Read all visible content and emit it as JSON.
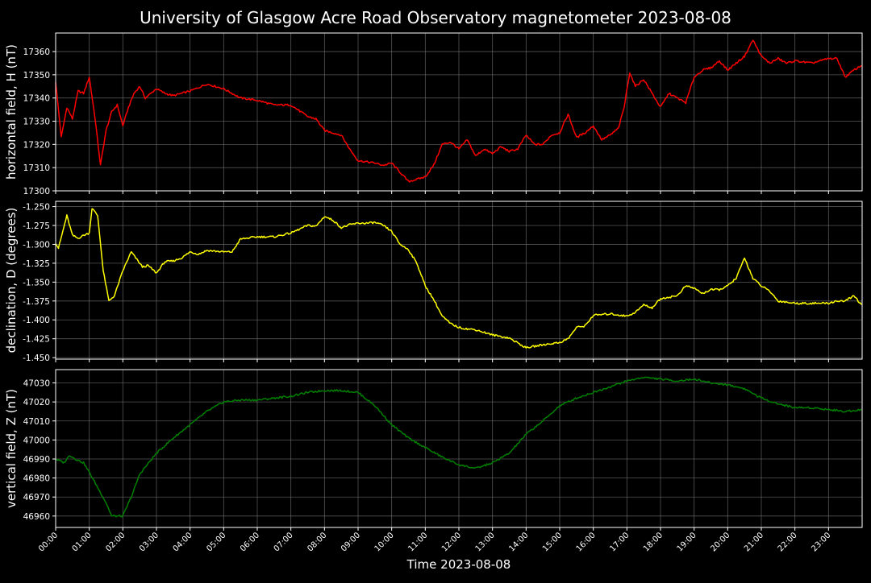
{
  "title": "University of Glasgow Acre Road Observatory magnetometer 2023-08-08",
  "colors": {
    "background": "#000000",
    "grid": "#777777",
    "frame": "#ffffff",
    "text": "#ffffff"
  },
  "chart_data": {
    "type": "line",
    "title": "University of Glasgow Acre Road Observatory magnetometer 2023-08-08",
    "xlabel": "Time 2023-08-08",
    "x_ticks": [
      "00:00",
      "01:00",
      "02:00",
      "03:00",
      "04:00",
      "05:00",
      "06:00",
      "07:00",
      "08:00",
      "09:00",
      "10:00",
      "11:00",
      "12:00",
      "13:00",
      "14:00",
      "15:00",
      "16:00",
      "17:00",
      "18:00",
      "19:00",
      "20:00",
      "21:00",
      "22:00",
      "23:00"
    ],
    "xlim": [
      "00:00",
      "24:00"
    ],
    "grid": true,
    "panels": [
      {
        "ylabel": "horizontal field, H (nT)",
        "color": "#ff0000",
        "ylim": [
          17300,
          17368
        ],
        "y_ticks": [
          "17300",
          "17310",
          "17320",
          "17330",
          "17340",
          "17350",
          "17360"
        ],
        "series": {
          "x": [
            "00:00",
            "00:10",
            "00:20",
            "00:30",
            "00:40",
            "00:50",
            "01:00",
            "01:10",
            "01:20",
            "01:30",
            "01:40",
            "01:50",
            "02:00",
            "02:10",
            "02:20",
            "02:30",
            "02:40",
            "02:50",
            "03:00",
            "03:15",
            "03:30",
            "04:00",
            "04:30",
            "05:00",
            "05:30",
            "06:00",
            "06:30",
            "07:00",
            "07:30",
            "07:45",
            "08:00",
            "08:30",
            "08:45",
            "09:00",
            "09:30",
            "09:45",
            "10:00",
            "10:30",
            "10:45",
            "11:00",
            "11:15",
            "11:30",
            "11:45",
            "12:00",
            "12:15",
            "12:30",
            "12:45",
            "13:00",
            "13:15",
            "13:30",
            "13:45",
            "14:00",
            "14:15",
            "14:30",
            "14:45",
            "15:00",
            "15:15",
            "15:30",
            "15:45",
            "16:00",
            "16:15",
            "16:30",
            "16:45",
            "16:55",
            "17:05",
            "17:15",
            "17:30",
            "17:45",
            "18:00",
            "18:15",
            "18:30",
            "18:45",
            "19:00",
            "19:15",
            "19:30",
            "19:45",
            "20:00",
            "20:15",
            "20:30",
            "20:45",
            "21:00",
            "21:15",
            "21:30",
            "21:45",
            "22:00",
            "22:30",
            "23:00",
            "23:15",
            "23:30",
            "23:45",
            "23:59"
          ],
          "y": [
            17347,
            17323,
            17336,
            17331,
            17343,
            17342,
            17349,
            17332,
            17311,
            17326,
            17334,
            17337,
            17328,
            17336,
            17342,
            17345,
            17340,
            17342,
            17344,
            17342,
            17341,
            17343,
            17346,
            17344,
            17340,
            17339,
            17337,
            17337,
            17332,
            17331,
            17326,
            17324,
            17318,
            17313,
            17312,
            17311,
            17312,
            17304,
            17305,
            17306,
            17311,
            17320,
            17321,
            17318,
            17322,
            17315,
            17318,
            17316,
            17319,
            17317,
            17318,
            17324,
            17320,
            17320,
            17324,
            17325,
            17333,
            17323,
            17325,
            17328,
            17322,
            17324,
            17327,
            17336,
            17351,
            17345,
            17348,
            17342,
            17336,
            17342,
            17340,
            17338,
            17349,
            17352,
            17353,
            17356,
            17352,
            17355,
            17358,
            17365,
            17358,
            17355,
            17357,
            17355,
            17356,
            17355,
            17357,
            17357,
            17349,
            17352,
            17354
          ]
        }
      },
      {
        "ylabel": "declination, D (degrees)",
        "color": "#ffff00",
        "ylim": [
          -1.452,
          -1.243
        ],
        "y_ticks": [
          "-1.450",
          "-1.425",
          "-1.400",
          "-1.375",
          "-1.350",
          "-1.325",
          "-1.300",
          "-1.275",
          "-1.250"
        ],
        "series": {
          "x": [
            "00:00",
            "00:05",
            "00:20",
            "00:30",
            "00:40",
            "00:50",
            "01:00",
            "01:05",
            "01:15",
            "01:25",
            "01:35",
            "01:45",
            "02:00",
            "02:15",
            "02:25",
            "02:35",
            "02:45",
            "03:00",
            "03:15",
            "03:30",
            "03:45",
            "04:00",
            "04:15",
            "04:30",
            "05:00",
            "05:15",
            "05:30",
            "06:00",
            "06:30",
            "07:00",
            "07:30",
            "07:45",
            "08:00",
            "08:15",
            "08:30",
            "08:45",
            "09:00",
            "09:15",
            "09:30",
            "09:45",
            "10:00",
            "10:15",
            "10:30",
            "10:45",
            "11:00",
            "11:15",
            "11:30",
            "11:45",
            "12:00",
            "12:15",
            "12:30",
            "13:00",
            "13:30",
            "14:00",
            "14:15",
            "14:30",
            "15:00",
            "15:15",
            "15:30",
            "15:45",
            "16:00",
            "16:30",
            "17:00",
            "17:15",
            "17:30",
            "17:45",
            "18:00",
            "18:30",
            "18:45",
            "19:00",
            "19:15",
            "19:30",
            "19:45",
            "20:00",
            "20:15",
            "20:30",
            "20:45",
            "21:00",
            "21:15",
            "21:30",
            "22:00",
            "22:30",
            "23:00",
            "23:15",
            "23:30",
            "23:45",
            "23:59"
          ],
          "y": [
            -1.298,
            -1.305,
            -1.262,
            -1.288,
            -1.292,
            -1.288,
            -1.285,
            -1.252,
            -1.262,
            -1.335,
            -1.375,
            -1.368,
            -1.335,
            -1.31,
            -1.32,
            -1.33,
            -1.328,
            -1.338,
            -1.323,
            -1.322,
            -1.318,
            -1.31,
            -1.313,
            -1.308,
            -1.31,
            -1.31,
            -1.293,
            -1.29,
            -1.29,
            -1.285,
            -1.275,
            -1.276,
            -1.263,
            -1.268,
            -1.278,
            -1.274,
            -1.272,
            -1.272,
            -1.271,
            -1.275,
            -1.283,
            -1.3,
            -1.307,
            -1.325,
            -1.355,
            -1.373,
            -1.395,
            -1.405,
            -1.41,
            -1.412,
            -1.413,
            -1.42,
            -1.424,
            -1.437,
            -1.435,
            -1.433,
            -1.43,
            -1.425,
            -1.41,
            -1.408,
            -1.394,
            -1.392,
            -1.395,
            -1.39,
            -1.38,
            -1.384,
            -1.372,
            -1.368,
            -1.355,
            -1.358,
            -1.365,
            -1.36,
            -1.36,
            -1.355,
            -1.345,
            -1.318,
            -1.345,
            -1.355,
            -1.362,
            -1.375,
            -1.378,
            -1.378,
            -1.378,
            -1.375,
            -1.375,
            -1.368,
            -1.38
          ]
        }
      },
      {
        "ylabel": "vertical field, Z (nT)",
        "color": "#008000",
        "ylim": [
          46954,
          47037
        ],
        "y_ticks": [
          "46960",
          "46970",
          "46980",
          "46990",
          "47000",
          "47010",
          "47020",
          "47030"
        ],
        "series": {
          "x": [
            "00:00",
            "00:15",
            "00:25",
            "00:35",
            "00:50",
            "01:00",
            "01:15",
            "01:30",
            "01:40",
            "02:00",
            "02:15",
            "02:30",
            "03:00",
            "03:15",
            "03:30",
            "04:00",
            "04:30",
            "05:00",
            "05:30",
            "06:00",
            "06:30",
            "07:00",
            "07:30",
            "08:00",
            "08:30",
            "09:00",
            "09:30",
            "10:00",
            "10:30",
            "11:00",
            "11:30",
            "12:00",
            "12:30",
            "13:00",
            "13:30",
            "14:00",
            "14:30",
            "15:00",
            "15:30",
            "16:00",
            "16:30",
            "17:00",
            "17:30",
            "18:00",
            "18:30",
            "19:00",
            "19:30",
            "20:00",
            "20:30",
            "21:00",
            "21:30",
            "22:00",
            "22:30",
            "23:00",
            "23:30",
            "23:59"
          ],
          "y": [
            46990,
            46988,
            46992,
            46990,
            46988,
            46983,
            46975,
            46967,
            46960,
            46960,
            46970,
            46982,
            46993,
            46997,
            47001,
            47008,
            47015,
            47020,
            47021,
            47021,
            47022,
            47023,
            47025,
            47026,
            47026,
            47025,
            47018,
            47008,
            47001,
            46996,
            46991,
            46987,
            46985,
            46988,
            46993,
            47003,
            47010,
            47018,
            47022,
            47025,
            47028,
            47031,
            47033,
            47032,
            47031,
            47032,
            47030,
            47029,
            47027,
            47022,
            47019,
            47017,
            47017,
            47016,
            47015,
            47016
          ]
        }
      }
    ]
  }
}
